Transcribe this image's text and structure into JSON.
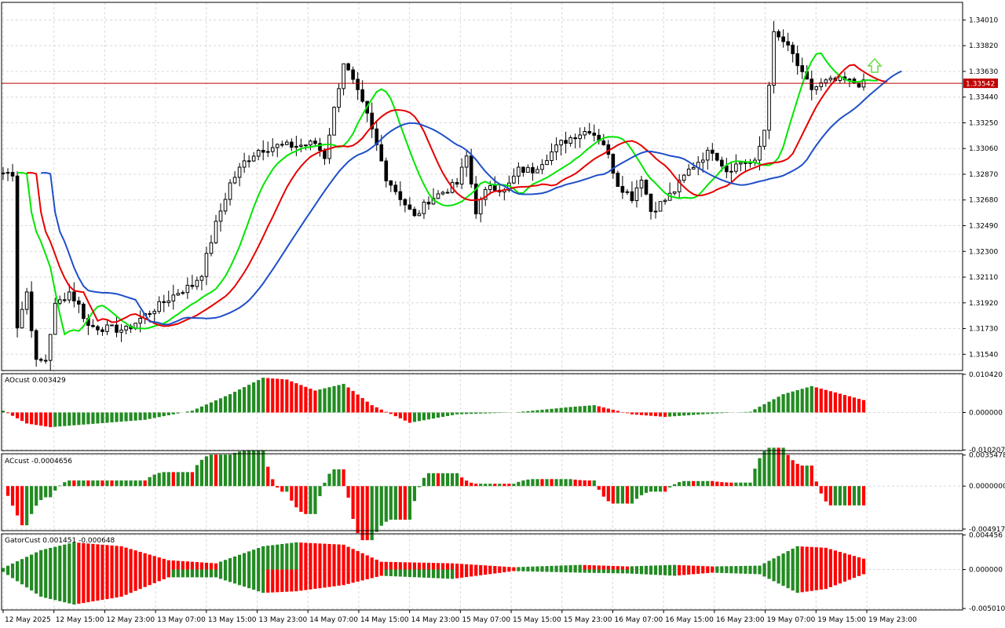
{
  "chart_data": {
    "type": "candlestick",
    "main": {
      "y_ticks": [
        "1.34010",
        "1.33820",
        "1.33630",
        "1.33440",
        "1.33250",
        "1.33060",
        "1.32870",
        "1.32680",
        "1.32490",
        "1.32300",
        "1.32110",
        "1.31920",
        "1.31730",
        "1.31540"
      ],
      "ylim": [
        1.3142,
        1.3414
      ],
      "current_price": "1.33542",
      "series": [
        {
          "name": "Alligator lips",
          "color": "#00e600"
        },
        {
          "name": "Alligator teeth",
          "color": "#e60000"
        },
        {
          "name": "Alligator jaw",
          "color": "#1f4fc8"
        }
      ]
    },
    "x_labels": [
      "12 May 2025",
      "12 May 15:00",
      "12 May 23:00",
      "13 May 07:00",
      "13 May 15:00",
      "13 May 23:00",
      "14 May 07:00",
      "14 May 15:00",
      "14 May 23:00",
      "15 May 07:00",
      "15 May 15:00",
      "15 May 23:00",
      "16 May 07:00",
      "16 May 15:00",
      "16 May 23:00",
      "19 May 07:00",
      "19 May 15:00",
      "19 May 23:00"
    ],
    "subpanels": [
      {
        "label": "AOcust 0.003429",
        "ticks": [
          "0.010420",
          "0.000000",
          "-0.010207"
        ],
        "ylim": [
          -0.0104,
          0.0106
        ]
      },
      {
        "label": "ACcust -0.0004656",
        "ticks": [
          "0.0035478",
          "0.0000000",
          "-0.0049173"
        ],
        "ylim": [
          -0.0051,
          0.0037
        ]
      },
      {
        "label": "GatorCust 0.001451 -0.000648",
        "ticks": [
          "0.004456",
          "0.000000",
          "-0.005010"
        ],
        "ylim": [
          -0.0052,
          0.0046
        ]
      }
    ],
    "colors": {
      "up": "#228b22",
      "down": "#ff0000",
      "grid": "#d8d8d8",
      "price_line": "#c00000",
      "arrow": "#66dd44"
    }
  }
}
